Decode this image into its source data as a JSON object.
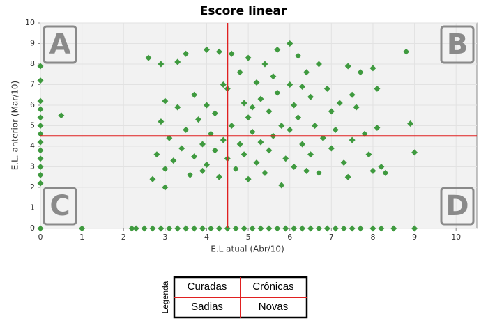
{
  "chart_data": {
    "type": "scatter",
    "title": "Escore linear",
    "x_label": "E.L atual (Abr/10)",
    "y_label": "E.L. anterior (Mar/10)",
    "color": "#3f9a3f",
    "xlim": [
      0,
      10.5
    ],
    "ylim": [
      0,
      10
    ],
    "xticks": [
      0,
      1,
      2,
      3,
      4,
      5,
      6,
      7,
      8,
      9,
      10
    ],
    "yticks": [
      0,
      1,
      2,
      3,
      4,
      5,
      6,
      7,
      8,
      9,
      10
    ],
    "grid": true,
    "reference_lines": {
      "x": 4.5,
      "y": 4.5,
      "color": "#e02020"
    },
    "annotations": [
      "A",
      "B",
      "C",
      "D"
    ],
    "x": [
      0,
      1,
      2.2,
      2.3,
      2.5,
      2.7,
      2.9,
      3.1,
      3.3,
      3.5,
      3.7,
      3.9,
      4.1,
      4.3,
      4.5,
      4.7,
      4.9,
      5.1,
      5.3,
      5.5,
      5.7,
      5.9,
      6.1,
      6.3,
      6.5,
      6.7,
      6.9,
      7.1,
      7.3,
      7.5,
      7.7,
      8,
      8.2,
      8.5,
      9,
      0,
      0,
      0,
      0,
      0,
      0,
      0,
      0,
      0,
      0,
      0,
      0,
      0,
      0.5,
      2.6,
      2.7,
      2.8,
      2.9,
      2.9,
      3.0,
      3.0,
      3.1,
      3.2,
      3.0,
      3.3,
      3.3,
      3.4,
      3.5,
      3.5,
      3.6,
      3.7,
      3.7,
      3.8,
      3.9,
      3.9,
      4.0,
      4.0,
      4.0,
      4.1,
      4.2,
      4.2,
      4.3,
      4.3,
      4.4,
      4.4,
      4.5,
      4.5,
      4.6,
      4.6,
      4.7,
      4.8,
      4.8,
      4.9,
      4.9,
      5.0,
      5.0,
      5.0,
      5.1,
      5.2,
      5.2,
      5.3,
      5.3,
      5.4,
      5.4,
      5.5,
      5.5,
      5.6,
      5.6,
      5.7,
      5.7,
      5.8,
      5.8,
      5.9,
      6.0,
      6.0,
      6.0,
      6.1,
      6.1,
      6.2,
      6.2,
      6.3,
      6.4,
      6.4,
      6.5,
      6.5,
      6.6,
      6.7,
      6.7,
      6.8,
      6.9,
      7.0,
      7.0,
      7.1,
      7.2,
      7.3,
      7.4,
      7.4,
      7.5,
      7.6,
      7.7,
      7.8,
      7.9,
      8.0,
      8.0,
      8.1,
      8.1,
      8.3,
      8.2,
      8.8,
      8.9,
      9.0,
      7.5,
      6.3,
      5.1
    ],
    "values": [
      0,
      0,
      0,
      0,
      0,
      0,
      0,
      0,
      0,
      0,
      0,
      0,
      0,
      0,
      0,
      0,
      0,
      0,
      0,
      0,
      0,
      0,
      0,
      0,
      0,
      0,
      0,
      0,
      0,
      0,
      0,
      0,
      0,
      0,
      0,
      2.2,
      2.6,
      3,
      3.4,
      3.8,
      4.2,
      4.6,
      5,
      5.4,
      5.8,
      6.2,
      7.2,
      7.9,
      5.5,
      8.3,
      2.4,
      3.6,
      5.2,
      8.0,
      6.2,
      2.9,
      4.4,
      3.3,
      2.0,
      5.9,
      8.1,
      3.9,
      8.5,
      4.8,
      2.6,
      6.5,
      3.5,
      5.3,
      4.1,
      2.8,
      8.7,
      6.0,
      3.1,
      4.6,
      5.6,
      3.8,
      8.6,
      2.5,
      7.0,
      4.3,
      6.8,
      3.4,
      8.5,
      5.0,
      2.9,
      7.6,
      4.1,
      6.1,
      3.6,
      8.3,
      5.4,
      2.4,
      4.7,
      7.1,
      3.2,
      6.3,
      4.2,
      8.0,
      2.7,
      5.7,
      3.8,
      7.4,
      4.5,
      8.7,
      6.6,
      2.1,
      5.0,
      3.4,
      9.0,
      7.0,
      4.8,
      6.0,
      3.0,
      8.4,
      5.4,
      4.1,
      7.6,
      2.8,
      6.4,
      3.6,
      5.0,
      8.0,
      2.7,
      4.4,
      6.8,
      5.7,
      3.9,
      4.8,
      6.1,
      3.2,
      7.9,
      2.5,
      4.3,
      5.9,
      7.6,
      4.6,
      3.6,
      2.8,
      7.8,
      4.9,
      6.8,
      2.7,
      3.0,
      8.6,
      5.1,
      3.7,
      6.5,
      6.9,
      5.9
    ]
  },
  "legend_table": {
    "title": "Legenda",
    "cells": [
      [
        "Curadas",
        "Crônicas"
      ],
      [
        "Sadias",
        "Novas"
      ]
    ]
  }
}
